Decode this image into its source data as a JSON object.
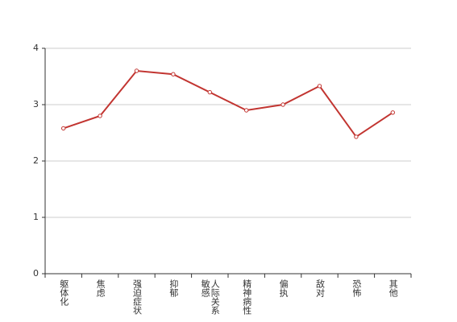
{
  "chart_data": {
    "type": "line",
    "categories": [
      "躯体化",
      "焦虑",
      "强迫症状",
      "抑郁",
      "人际关系敏感",
      "精神病性",
      "偏执",
      "敌对",
      "恐怖",
      "其他"
    ],
    "values": [
      2.58,
      2.8,
      3.6,
      3.54,
      3.22,
      2.9,
      3.0,
      3.33,
      2.43,
      2.86
    ],
    "color": "#c23531",
    "ylim": [
      0,
      4
    ],
    "yticks": [
      0,
      1,
      2,
      3,
      4
    ],
    "grid": true
  }
}
